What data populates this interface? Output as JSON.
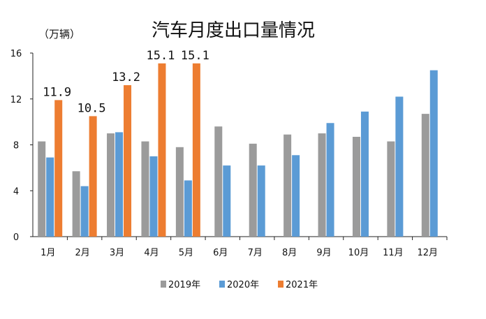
{
  "chart_data": {
    "type": "bar",
    "title": "汽车月度出口量情况",
    "unit_label": "（万辆）",
    "categories": [
      "1月",
      "2月",
      "3月",
      "4月",
      "5月",
      "6月",
      "7月",
      "8月",
      "9月",
      "10月",
      "11月",
      "12月"
    ],
    "ylim": [
      0,
      16
    ],
    "yticks": [
      0,
      4,
      8,
      12,
      16
    ],
    "grid": false,
    "legend_position": "bottom",
    "series": [
      {
        "name": "2019年",
        "color": "#9b9b9b",
        "values": [
          8.3,
          5.7,
          9.0,
          8.3,
          7.8,
          9.6,
          8.1,
          8.9,
          9.0,
          8.7,
          8.3,
          10.7
        ]
      },
      {
        "name": "2020年",
        "color": "#5b9bd5",
        "values": [
          6.9,
          4.4,
          9.1,
          7.0,
          4.9,
          6.2,
          6.2,
          7.1,
          9.9,
          10.9,
          12.2,
          14.5
        ]
      },
      {
        "name": "2021年",
        "color": "#ed7d31",
        "values": [
          11.9,
          10.5,
          13.2,
          15.1,
          15.1,
          null,
          null,
          null,
          null,
          null,
          null,
          null
        ],
        "labels": [
          "11.9",
          "10.5",
          "13.2",
          "15.1",
          "15.1"
        ]
      }
    ]
  }
}
